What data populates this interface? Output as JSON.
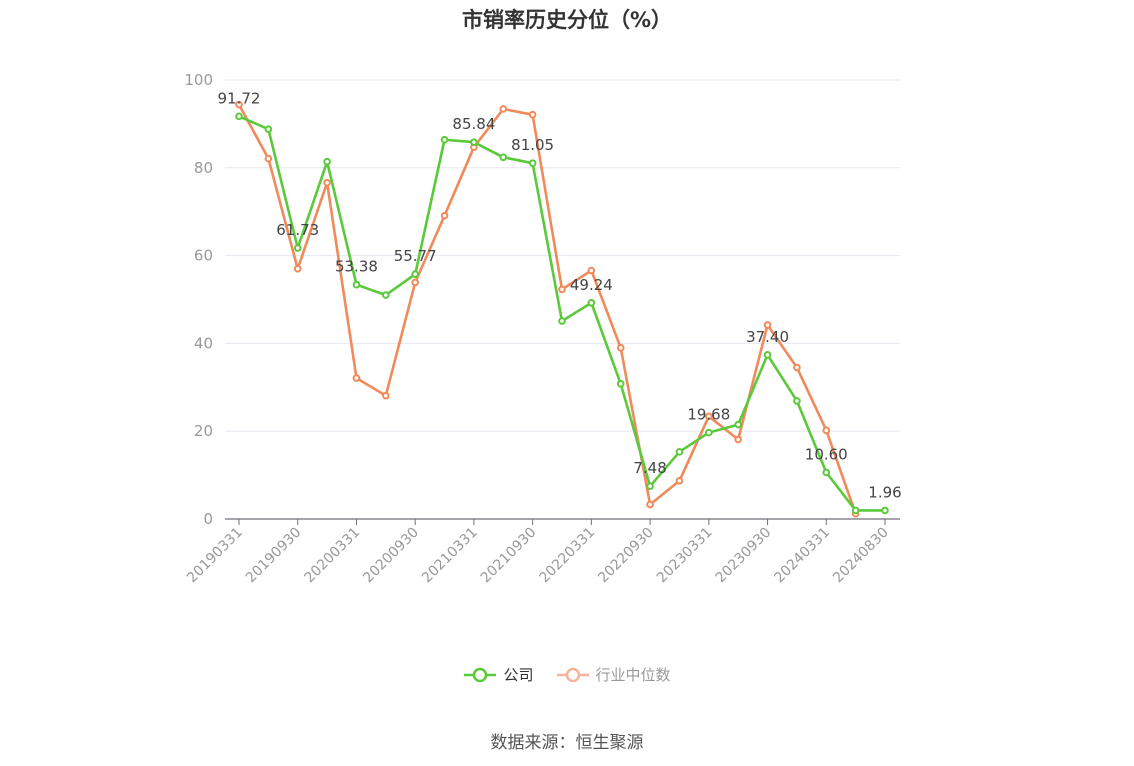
{
  "chart_data": {
    "type": "line",
    "title": "市销率历史分位（%）",
    "x": [
      "20190331",
      "20190630",
      "20190930",
      "20191231",
      "20200331",
      "20200630",
      "20200930",
      "20201231",
      "20210331",
      "20210630",
      "20210930",
      "20211231",
      "20220331",
      "20220630",
      "20220930",
      "20221231",
      "20230331",
      "20230630",
      "20230930",
      "20231231",
      "20240331",
      "20240630",
      "20240830"
    ],
    "x_tick_labels": [
      "20190331",
      "20190930",
      "20200331",
      "20200930",
      "20210331",
      "20210930",
      "20220331",
      "20220930",
      "20230331",
      "20230930",
      "20240331",
      "20240830"
    ],
    "ylim": [
      0,
      100
    ],
    "y_ticks": [
      "0",
      "20",
      "40",
      "60",
      "80",
      "100"
    ],
    "grid": true,
    "legend_position": "bottom",
    "series": [
      {
        "name": "公司",
        "color": "#5ac93a",
        "values": [
          91.72,
          88.8,
          61.73,
          81.4,
          53.38,
          51.0,
          55.77,
          86.4,
          85.84,
          82.4,
          81.05,
          45.1,
          49.24,
          30.8,
          7.48,
          15.3,
          19.68,
          21.5,
          37.4,
          26.9,
          10.6,
          1.96,
          1.96
        ],
        "labels": [
          "91.72",
          "",
          "61.73",
          "",
          "53.38",
          "",
          "55.77",
          "",
          "85.84",
          "",
          "81.05",
          "",
          "49.24",
          "",
          "7.48",
          "",
          "19.68",
          "",
          "37.40",
          "",
          "10.60",
          "",
          "1.96"
        ]
      },
      {
        "name": "行业中位数",
        "color": "#f08a5a",
        "values": [
          94.4,
          82.1,
          57.0,
          76.6,
          32.1,
          28.1,
          53.9,
          69.1,
          84.7,
          93.4,
          92.1,
          52.3,
          56.6,
          39.0,
          3.3,
          8.7,
          23.4,
          18.1,
          44.2,
          34.5,
          20.2,
          1.2,
          null
        ]
      }
    ]
  },
  "legend": {
    "company": "公司",
    "industry": "行业中位数"
  },
  "source": "数据来源：恒生聚源"
}
